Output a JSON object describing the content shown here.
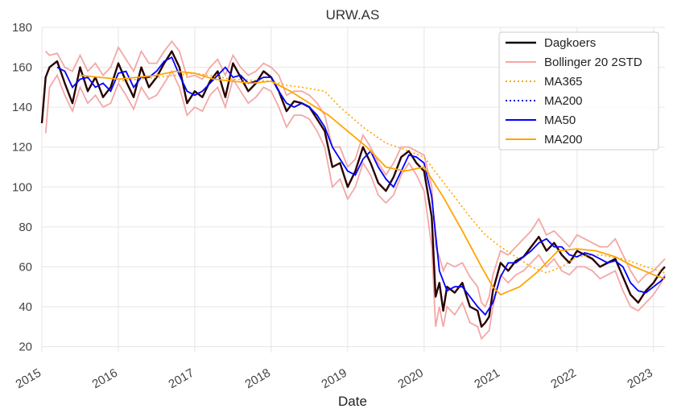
{
  "chart_data": {
    "type": "line",
    "title": "URW.AS",
    "xlabel": "Date",
    "ylabel": "",
    "xlim": [
      2015.0,
      2023.15
    ],
    "ylim": [
      17,
      180
    ],
    "x_ticks": [
      2015,
      2016,
      2017,
      2018,
      2019,
      2020,
      2021,
      2022,
      2023
    ],
    "x_tick_labels": [
      "2015",
      "2016",
      "2017",
      "2018",
      "2019",
      "2020",
      "2021",
      "2022",
      "2023"
    ],
    "y_ticks": [
      20,
      40,
      60,
      80,
      100,
      120,
      140,
      160,
      180
    ],
    "y_tick_labels": [
      "20",
      "40",
      "60",
      "80",
      "100",
      "120",
      "140",
      "160",
      "180"
    ],
    "grid": true,
    "legend_position": "top-right",
    "colors": {
      "dagkoers": "#000000",
      "bollinger": "#f4a7a7",
      "ma365": "#ffa500",
      "ma200_dotted": "#0000cc",
      "ma50": "#0000ff",
      "ma200": "#ffa500",
      "grid": "#e6e6e6"
    },
    "series": [
      {
        "name": "Dagkoers",
        "style": "solid",
        "x": [
          2015.0,
          2015.05,
          2015.1,
          2015.2,
          2015.3,
          2015.4,
          2015.5,
          2015.6,
          2015.7,
          2015.8,
          2015.9,
          2016.0,
          2016.1,
          2016.2,
          2016.3,
          2016.4,
          2016.5,
          2016.6,
          2016.7,
          2016.8,
          2016.9,
          2017.0,
          2017.1,
          2017.2,
          2017.3,
          2017.4,
          2017.5,
          2017.6,
          2017.7,
          2017.8,
          2017.9,
          2018.0,
          2018.1,
          2018.2,
          2018.3,
          2018.4,
          2018.5,
          2018.6,
          2018.7,
          2018.8,
          2018.9,
          2019.0,
          2019.1,
          2019.2,
          2019.3,
          2019.4,
          2019.5,
          2019.6,
          2019.7,
          2019.8,
          2019.9,
          2020.0,
          2020.1,
          2020.15,
          2020.2,
          2020.25,
          2020.3,
          2020.4,
          2020.5,
          2020.6,
          2020.7,
          2020.75,
          2020.8,
          2020.85,
          2020.9,
          2021.0,
          2021.1,
          2021.2,
          2021.3,
          2021.4,
          2021.5,
          2021.6,
          2021.7,
          2021.8,
          2021.9,
          2022.0,
          2022.1,
          2022.2,
          2022.3,
          2022.4,
          2022.5,
          2022.6,
          2022.7,
          2022.8,
          2022.9,
          2023.0,
          2023.1,
          2023.15
        ],
        "values": [
          132,
          155,
          160,
          163,
          152,
          142,
          160,
          148,
          155,
          145,
          150,
          162,
          153,
          145,
          160,
          150,
          155,
          162,
          168,
          160,
          142,
          148,
          145,
          153,
          158,
          145,
          162,
          155,
          148,
          152,
          158,
          155,
          148,
          138,
          143,
          142,
          140,
          134,
          128,
          110,
          112,
          100,
          108,
          120,
          112,
          102,
          98,
          105,
          115,
          118,
          112,
          108,
          85,
          45,
          52,
          38,
          50,
          47,
          52,
          40,
          38,
          30,
          32,
          35,
          48,
          62,
          58,
          63,
          65,
          70,
          75,
          68,
          72,
          66,
          62,
          68,
          66,
          64,
          60,
          62,
          64,
          55,
          46,
          42,
          48,
          52,
          58,
          60
        ]
      },
      {
        "name": "Bollinger 20 2STD",
        "style": "solid",
        "upper": {
          "x": [
            2015.05,
            2015.1,
            2015.2,
            2015.3,
            2015.4,
            2015.5,
            2015.6,
            2015.7,
            2015.8,
            2015.9,
            2016.0,
            2016.1,
            2016.2,
            2016.3,
            2016.4,
            2016.5,
            2016.6,
            2016.7,
            2016.8,
            2016.9,
            2017.0,
            2017.1,
            2017.2,
            2017.3,
            2017.4,
            2017.5,
            2017.6,
            2017.7,
            2017.8,
            2017.9,
            2018.0,
            2018.1,
            2018.2,
            2018.3,
            2018.4,
            2018.5,
            2018.6,
            2018.7,
            2018.8,
            2018.9,
            2019.0,
            2019.1,
            2019.2,
            2019.3,
            2019.4,
            2019.5,
            2019.6,
            2019.7,
            2019.8,
            2019.9,
            2020.0,
            2020.1,
            2020.15,
            2020.2,
            2020.25,
            2020.3,
            2020.4,
            2020.5,
            2020.6,
            2020.7,
            2020.75,
            2020.8,
            2020.85,
            2020.9,
            2021.0,
            2021.1,
            2021.2,
            2021.3,
            2021.4,
            2021.5,
            2021.6,
            2021.7,
            2021.8,
            2021.9,
            2022.0,
            2022.1,
            2022.2,
            2022.3,
            2022.4,
            2022.5,
            2022.6,
            2022.7,
            2022.8,
            2022.9,
            2023.0,
            2023.1,
            2023.15
          ],
          "values": [
            168,
            166,
            167,
            160,
            158,
            166,
            158,
            162,
            156,
            160,
            170,
            164,
            158,
            168,
            162,
            162,
            168,
            173,
            168,
            155,
            156,
            154,
            160,
            164,
            156,
            166,
            160,
            156,
            158,
            162,
            160,
            156,
            146,
            148,
            148,
            146,
            142,
            136,
            120,
            120,
            110,
            114,
            126,
            120,
            112,
            106,
            112,
            120,
            120,
            118,
            116,
            100,
            70,
            65,
            58,
            62,
            60,
            62,
            55,
            50,
            42,
            40,
            45,
            56,
            68,
            66,
            70,
            74,
            78,
            84,
            76,
            78,
            74,
            70,
            76,
            74,
            72,
            70,
            70,
            74,
            66,
            58,
            52,
            56,
            58,
            62,
            64
          ]
        },
        "lower": {
          "x": [
            2015.05,
            2015.1,
            2015.2,
            2015.3,
            2015.4,
            2015.5,
            2015.6,
            2015.7,
            2015.8,
            2015.9,
            2016.0,
            2016.1,
            2016.2,
            2016.3,
            2016.4,
            2016.5,
            2016.6,
            2016.7,
            2016.8,
            2016.9,
            2017.0,
            2017.1,
            2017.2,
            2017.3,
            2017.4,
            2017.5,
            2017.6,
            2017.7,
            2017.8,
            2017.9,
            2018.0,
            2018.1,
            2018.2,
            2018.3,
            2018.4,
            2018.5,
            2018.6,
            2018.7,
            2018.8,
            2018.9,
            2019.0,
            2019.1,
            2019.2,
            2019.3,
            2019.4,
            2019.5,
            2019.6,
            2019.7,
            2019.8,
            2019.9,
            2020.0,
            2020.1,
            2020.15,
            2020.2,
            2020.25,
            2020.3,
            2020.4,
            2020.5,
            2020.6,
            2020.7,
            2020.75,
            2020.8,
            2020.85,
            2020.9,
            2021.0,
            2021.1,
            2021.2,
            2021.3,
            2021.4,
            2021.5,
            2021.6,
            2021.7,
            2021.8,
            2021.9,
            2022.0,
            2022.1,
            2022.2,
            2022.3,
            2022.4,
            2022.5,
            2022.6,
            2022.7,
            2022.8,
            2022.9,
            2023.0,
            2023.1,
            2023.15
          ],
          "values": [
            127,
            150,
            156,
            146,
            138,
            150,
            142,
            146,
            140,
            142,
            152,
            146,
            139,
            150,
            144,
            146,
            152,
            158,
            150,
            136,
            140,
            138,
            146,
            150,
            140,
            154,
            148,
            142,
            145,
            150,
            148,
            140,
            130,
            136,
            136,
            134,
            128,
            120,
            100,
            104,
            94,
            100,
            112,
            106,
            96,
            92,
            96,
            106,
            112,
            106,
            98,
            70,
            30,
            40,
            30,
            40,
            36,
            42,
            32,
            30,
            24,
            26,
            28,
            40,
            56,
            52,
            56,
            58,
            62,
            66,
            60,
            64,
            58,
            56,
            60,
            60,
            58,
            54,
            56,
            58,
            48,
            40,
            38,
            42,
            46,
            52,
            56
          ]
        }
      },
      {
        "name": "MA365",
        "style": "dotted",
        "x": [
          2016.0,
          2016.5,
          2017.0,
          2017.5,
          2018.0,
          2018.2,
          2018.4,
          2018.7,
          2018.9,
          2019.2,
          2019.5,
          2019.8,
          2020.0,
          2020.2,
          2020.4,
          2020.6,
          2020.8,
          2021.0,
          2021.2,
          2021.4,
          2021.6,
          2021.8,
          2022.0,
          2022.3,
          2022.6,
          2022.9,
          2023.15
        ],
        "values": [
          153,
          155,
          157,
          154,
          153,
          151,
          150,
          148,
          140,
          130,
          122,
          118,
          115,
          105,
          95,
          85,
          76,
          70,
          65,
          60,
          57,
          60,
          65,
          66,
          64,
          60,
          57
        ]
      },
      {
        "name": "MA200",
        "style": "dotted-blue",
        "x": [],
        "values": []
      },
      {
        "name": "MA50",
        "style": "solid",
        "x": [
          2015.2,
          2015.3,
          2015.4,
          2015.5,
          2015.6,
          2015.7,
          2015.8,
          2015.9,
          2016.0,
          2016.1,
          2016.2,
          2016.3,
          2016.4,
          2016.5,
          2016.6,
          2016.7,
          2016.8,
          2016.9,
          2017.0,
          2017.1,
          2017.2,
          2017.3,
          2017.4,
          2017.5,
          2017.6,
          2017.7,
          2017.8,
          2017.9,
          2018.0,
          2018.1,
          2018.2,
          2018.3,
          2018.4,
          2018.5,
          2018.6,
          2018.7,
          2018.8,
          2018.9,
          2019.0,
          2019.1,
          2019.2,
          2019.3,
          2019.4,
          2019.5,
          2019.6,
          2019.7,
          2019.8,
          2019.9,
          2020.0,
          2020.1,
          2020.2,
          2020.3,
          2020.4,
          2020.5,
          2020.6,
          2020.7,
          2020.8,
          2020.9,
          2021.0,
          2021.1,
          2021.2,
          2021.3,
          2021.4,
          2021.5,
          2021.6,
          2021.7,
          2021.8,
          2021.9,
          2022.0,
          2022.1,
          2022.2,
          2022.3,
          2022.4,
          2022.5,
          2022.6,
          2022.7,
          2022.8,
          2022.9,
          2023.0,
          2023.1,
          2023.15
        ],
        "values": [
          160,
          158,
          150,
          154,
          155,
          150,
          152,
          148,
          157,
          158,
          150,
          155,
          155,
          158,
          163,
          165,
          156,
          148,
          146,
          148,
          152,
          156,
          160,
          155,
          156,
          152,
          153,
          155,
          155,
          148,
          142,
          140,
          142,
          140,
          136,
          130,
          120,
          114,
          108,
          106,
          114,
          118,
          110,
          104,
          100,
          108,
          116,
          115,
          112,
          95,
          58,
          48,
          50,
          50,
          45,
          40,
          36,
          42,
          55,
          62,
          62,
          65,
          68,
          72,
          74,
          70,
          70,
          66,
          65,
          67,
          66,
          64,
          62,
          63,
          60,
          52,
          48,
          47,
          50,
          53,
          55
        ]
      },
      {
        "name": "MA200",
        "style": "solid",
        "x": [
          2015.5,
          2015.75,
          2016.0,
          2016.25,
          2016.5,
          2016.75,
          2017.0,
          2017.25,
          2017.5,
          2017.75,
          2018.0,
          2018.25,
          2018.5,
          2018.75,
          2019.0,
          2019.25,
          2019.5,
          2019.75,
          2020.0,
          2020.25,
          2020.5,
          2020.75,
          2020.9,
          2021.0,
          2021.25,
          2021.5,
          2021.75,
          2022.0,
          2022.25,
          2022.5,
          2022.75,
          2023.0,
          2023.15
        ],
        "values": [
          156,
          155,
          154,
          155,
          156,
          158,
          157,
          154,
          153,
          152,
          153,
          148,
          142,
          136,
          128,
          120,
          110,
          108,
          110,
          95,
          78,
          60,
          50,
          46,
          50,
          58,
          68,
          69,
          68,
          65,
          60,
          56,
          54
        ]
      }
    ]
  }
}
